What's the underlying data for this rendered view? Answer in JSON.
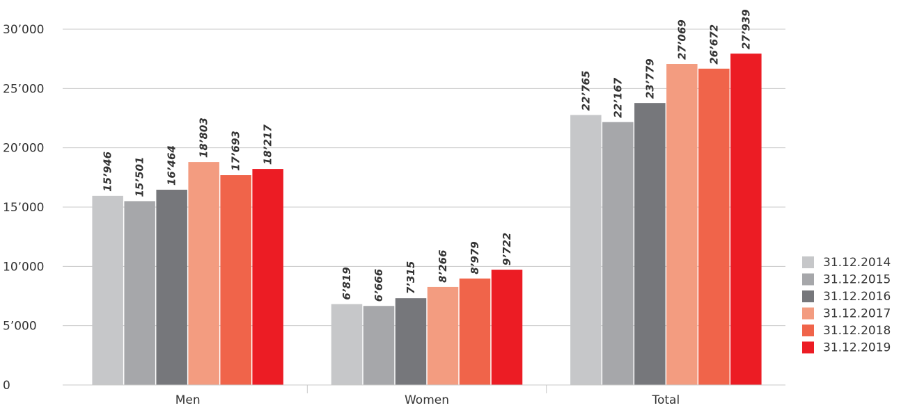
{
  "chart_data": {
    "type": "bar",
    "categories": [
      "Men",
      "Women",
      "Total"
    ],
    "series": [
      {
        "name": "31.12.2014",
        "color": "#c6c7c9",
        "values": [
          15946,
          6819,
          22765
        ],
        "labels": [
          "15’946",
          "6’819",
          "22’765"
        ]
      },
      {
        "name": "31.12.2015",
        "color": "#a6a7aa",
        "values": [
          15501,
          6666,
          22167
        ],
        "labels": [
          "15’501",
          "6’666",
          "22’167"
        ]
      },
      {
        "name": "31.12.2016",
        "color": "#76777b",
        "values": [
          16464,
          7315,
          23779
        ],
        "labels": [
          "16’464",
          "7’315",
          "23’779"
        ]
      },
      {
        "name": "31.12.2017",
        "color": "#f39c80",
        "values": [
          18803,
          8266,
          27069
        ],
        "labels": [
          "18’803",
          "8’266",
          "27’069"
        ]
      },
      {
        "name": "31.12.2018",
        "color": "#f0644a",
        "values": [
          17693,
          8979,
          26672
        ],
        "labels": [
          "17’693",
          "8’979",
          "26’672"
        ]
      },
      {
        "name": "31.12.2019",
        "color": "#ec1c24",
        "values": [
          18217,
          9722,
          27939
        ],
        "labels": [
          "18’217",
          "9’722",
          "27’939"
        ]
      }
    ],
    "ylim": [
      0,
      30000
    ],
    "yticks": [
      0,
      5000,
      10000,
      15000,
      20000,
      25000,
      30000
    ],
    "ytick_labels": [
      "0",
      "5’000",
      "10’000",
      "15’000",
      "20’000",
      "25’000",
      "30’000"
    ],
    "grid": true,
    "legend_position": "right-bottom",
    "gridline_color": "#c8c8c8"
  }
}
